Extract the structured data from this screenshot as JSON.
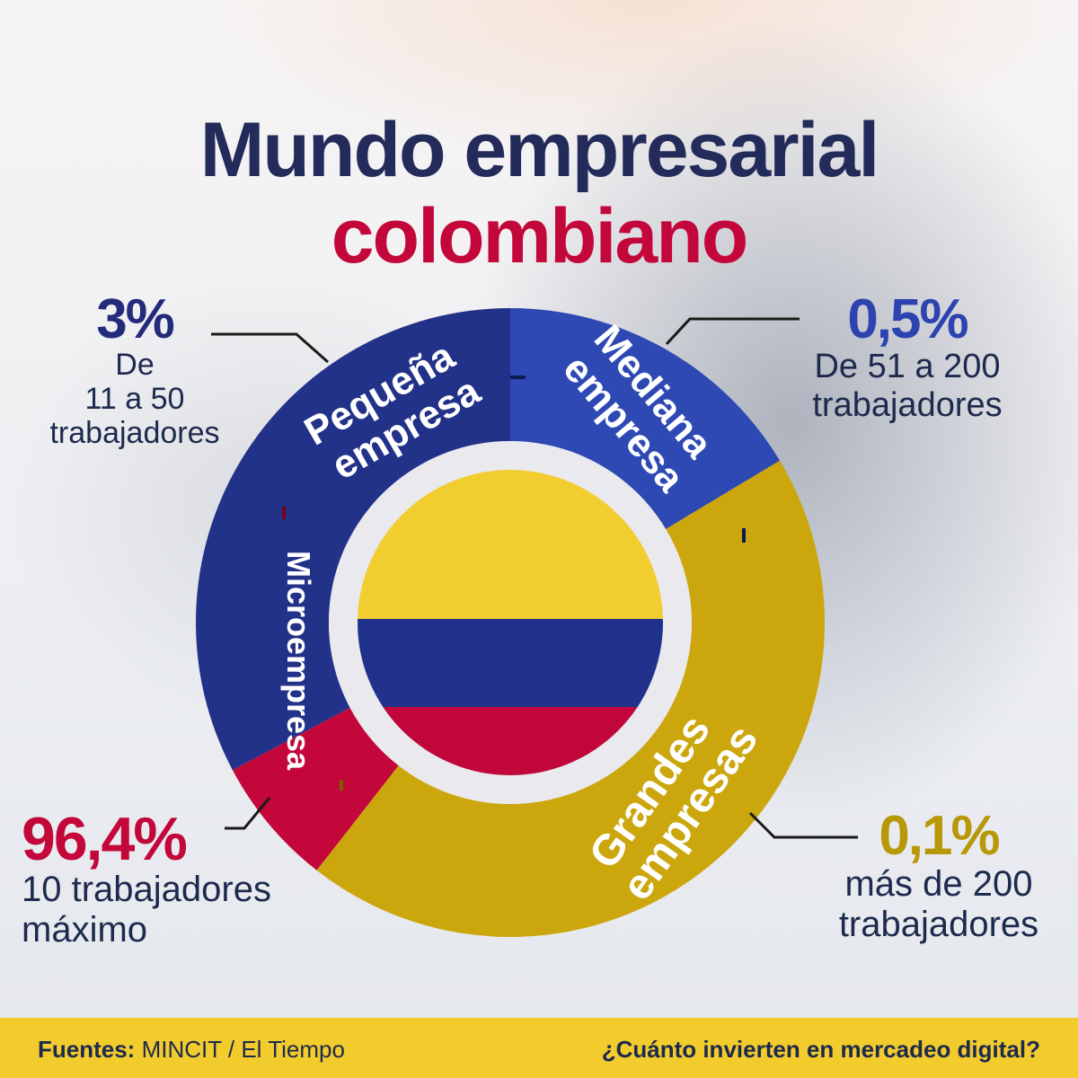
{
  "title": {
    "line1": "Mundo empresarial",
    "line2": "colombiano"
  },
  "colors": {
    "micro": "#c3073a",
    "small": "#233289",
    "medium": "#2e49b4",
    "large": "#cba60c",
    "flag_yellow": "#f2cd30",
    "flag_blue": "#21328c",
    "flag_red": "#c0063a"
  },
  "chart_data": {
    "type": "pie",
    "style": "donut",
    "segments": [
      {
        "label": "Pequeña empresa",
        "percent": "3%",
        "description": "De 11 a 50 trabajadores",
        "color": "#233289"
      },
      {
        "label": "Mediana empresa",
        "percent": "0,5%",
        "description": "De 51 a 200 trabajadores",
        "color": "#2e49b4"
      },
      {
        "label": "Grandes empresas",
        "percent": "0,1%",
        "description": "más de 200 trabajadores",
        "color": "#cba60c"
      },
      {
        "label": "Microempresa",
        "percent": "96,4%",
        "description": "10 trabajadores máximo",
        "color": "#c3073a"
      }
    ],
    "center": "flag-of-colombia"
  },
  "callouts": {
    "small": {
      "pct": "3%",
      "line1": "De",
      "line2": "11 a 50",
      "line3": "trabajadores"
    },
    "medium": {
      "pct": "0,5%",
      "line1": "De 51 a 200",
      "line2": "trabajadores"
    },
    "micro": {
      "pct": "96,4%",
      "line1": "10 trabajadores",
      "line2": "máximo"
    },
    "large": {
      "pct": "0,1%",
      "line1": "más de 200",
      "line2": "trabajadores"
    }
  },
  "segment_labels": {
    "small": {
      "line1": "Pequeña",
      "line2": "empresa"
    },
    "medium": {
      "line1": "Mediana",
      "line2": "empresa"
    },
    "micro": {
      "line1": "Microempresa"
    },
    "large": {
      "line1": "Grandes",
      "line2": "empresas"
    }
  },
  "footer": {
    "sources_label": "Fuentes:",
    "sources_value": "MINCIT / El Tiempo",
    "question": "¿Cuánto invierten en mercadeo digital?"
  }
}
